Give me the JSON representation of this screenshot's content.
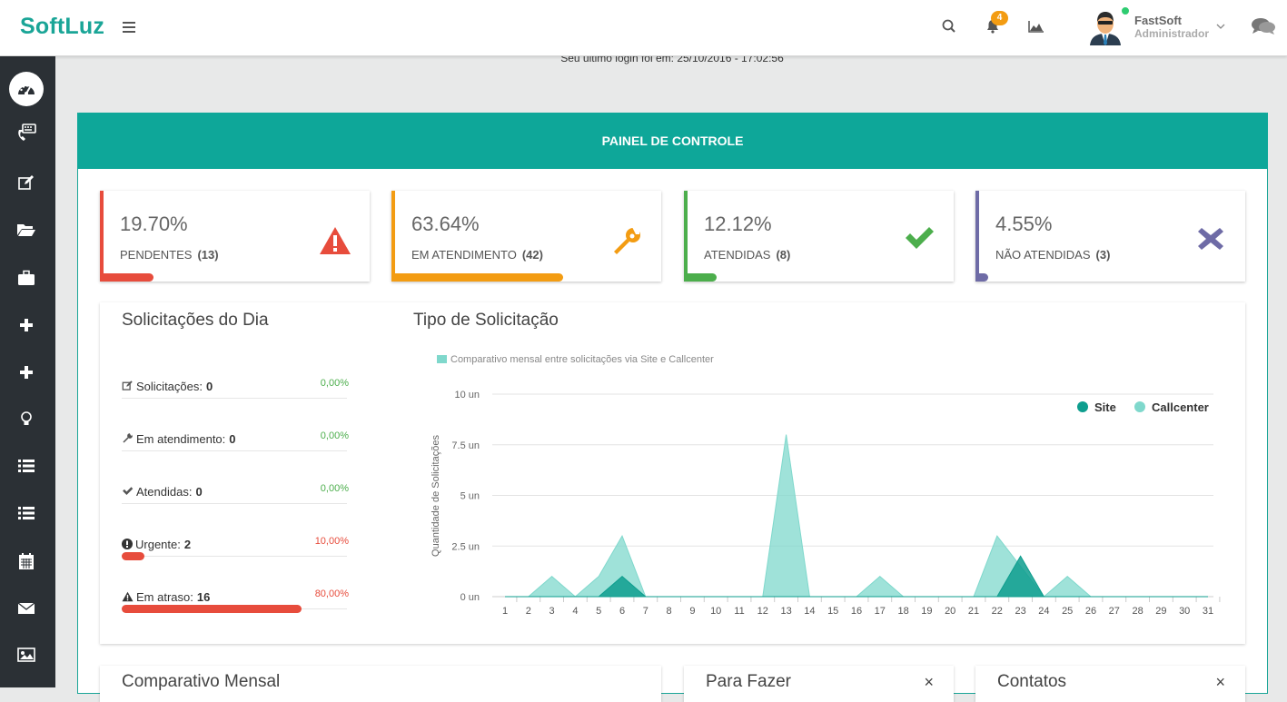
{
  "app": {
    "logo": "SoftLuz"
  },
  "topbar": {
    "notif_count": "4",
    "user_name": "FastSoft",
    "user_role": "Administrador",
    "icons": [
      "search-icon",
      "bell-icon",
      "area-chart-icon",
      "comments-icon"
    ]
  },
  "sidebar": {
    "items": [
      "dashboard-icon",
      "phone-keyboard-icon",
      "edit-icon",
      "folder-open-icon",
      "briefcase-icon",
      "plus-icon",
      "plus-icon",
      "lightbulb-icon",
      "list-icon",
      "list-icon",
      "calendar-icon",
      "envelope-icon",
      "image-icon"
    ]
  },
  "last_login": "Seu último login foi em: 25/10/2016 - 17:02:56",
  "panel": {
    "title": "PAINEL DE CONTROLE"
  },
  "stats": [
    {
      "pct": "19.70%",
      "label": "PENDENTES",
      "count": "(13)",
      "color": "#e74c3c",
      "fill": 0.197,
      "icon": "warning-icon"
    },
    {
      "pct": "63.64%",
      "label": "EM ATENDIMENTO",
      "count": "(42)",
      "color": "#f39c12",
      "fill": 0.6364,
      "icon": "wrench-icon"
    },
    {
      "pct": "12.12%",
      "label": "ATENDIDAS",
      "count": "(8)",
      "color": "#4cae4c",
      "fill": 0.1212,
      "icon": "check-icon"
    },
    {
      "pct": "4.55%",
      "label": "NÃO ATENDIDAS",
      "count": "(3)",
      "color": "#6e6ba6",
      "fill": 0.0455,
      "icon": "times-icon"
    }
  ],
  "day": {
    "title": "Solicitações do Dia",
    "rows": [
      {
        "label": "Solicitações:",
        "value": "0",
        "pct": "0,00%",
        "fill": 0,
        "pct_color": "#4cae4c",
        "icon": "edit-icon"
      },
      {
        "label": "Em atendimento:",
        "value": "0",
        "pct": "0,00%",
        "fill": 0,
        "pct_color": "#4cae4c",
        "icon": "wrench-icon"
      },
      {
        "label": "Atendidas:",
        "value": "0",
        "pct": "0,00%",
        "fill": 0,
        "pct_color": "#4cae4c",
        "icon": "check-icon"
      },
      {
        "label": "Urgente:",
        "value": "2",
        "pct": "10,00%",
        "fill": 0.1,
        "pct_color": "#e74c3c",
        "icon": "exclamation-circle-icon"
      },
      {
        "label": "Em atraso:",
        "value": "16",
        "pct": "80,00%",
        "fill": 0.8,
        "pct_color": "#e74c3c",
        "icon": "warning-icon"
      }
    ]
  },
  "type_title": "Tipo de Solicitação",
  "chart_data": {
    "type": "area",
    "title": "Comparativo mensal entre solicitações via Site e Callcenter",
    "xlabel": "",
    "ylabel": "Quantidade de Solicitações",
    "x": [
      1,
      2,
      3,
      4,
      5,
      6,
      7,
      8,
      9,
      10,
      11,
      12,
      13,
      14,
      15,
      16,
      17,
      18,
      19,
      20,
      21,
      22,
      23,
      24,
      25,
      26,
      27,
      28,
      29,
      30,
      31
    ],
    "ylim": [
      0,
      10
    ],
    "yticks": [
      "0 un",
      "2.5 un",
      "5 un",
      "7.5 un",
      "10 un"
    ],
    "legend_position": "top-right",
    "series": [
      {
        "name": "Site",
        "color": "#0e9e8e",
        "values": [
          0,
          0,
          0,
          0,
          0,
          1,
          0,
          0,
          0,
          0,
          0,
          0,
          0,
          0,
          0,
          0,
          0,
          0,
          0,
          0,
          0,
          0,
          2,
          0,
          0,
          0,
          0,
          0,
          0,
          0,
          0
        ]
      },
      {
        "name": "Callcenter",
        "color": "#7fd8cc",
        "values": [
          0,
          0,
          1,
          0,
          1,
          3,
          0,
          0,
          0,
          0,
          0,
          0,
          8,
          0,
          0,
          0,
          1,
          0,
          0,
          0,
          0,
          3,
          1.5,
          0,
          1,
          0,
          0,
          0,
          0,
          0,
          0
        ]
      }
    ]
  },
  "bottom": {
    "comparativo": "Comparativo Mensal",
    "para_fazer": "Para Fazer",
    "contatos": "Contatos",
    "close": "×"
  }
}
